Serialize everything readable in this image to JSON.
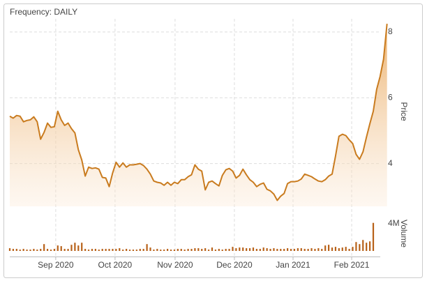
{
  "chart_data": [
    {
      "type": "area",
      "title": "Frequency: DAILY",
      "y_label": "Price",
      "color": "#c97b1e",
      "xlim": [
        0,
        106
      ],
      "ylim": [
        2.7,
        8.4
      ],
      "yticks": [
        4,
        6,
        8
      ],
      "grid": true,
      "values": [
        5.44,
        5.38,
        5.46,
        5.44,
        5.27,
        5.31,
        5.33,
        5.42,
        5.27,
        4.74,
        4.95,
        5.23,
        5.1,
        5.12,
        5.59,
        5.33,
        5.16,
        5.23,
        5.06,
        4.93,
        4.42,
        4.11,
        3.62,
        3.89,
        3.85,
        3.87,
        3.83,
        3.58,
        3.56,
        3.3,
        3.72,
        4.04,
        3.89,
        4.02,
        3.89,
        3.96,
        3.96,
        3.98,
        4.0,
        3.94,
        3.83,
        3.68,
        3.47,
        3.43,
        3.41,
        3.34,
        3.43,
        3.34,
        3.43,
        3.39,
        3.51,
        3.51,
        3.6,
        3.66,
        3.96,
        3.83,
        3.77,
        3.2,
        3.43,
        3.47,
        3.39,
        3.32,
        3.64,
        3.81,
        3.85,
        3.77,
        3.56,
        3.64,
        3.83,
        3.66,
        3.51,
        3.43,
        3.3,
        3.37,
        3.41,
        3.22,
        3.17,
        3.07,
        2.88,
        3.01,
        3.09,
        3.39,
        3.45,
        3.45,
        3.47,
        3.53,
        3.68,
        3.64,
        3.6,
        3.53,
        3.47,
        3.45,
        3.51,
        3.62,
        3.68,
        4.23,
        4.83,
        4.89,
        4.85,
        4.72,
        4.61,
        4.28,
        4.13,
        4.36,
        4.8,
        5.21,
        5.59,
        6.26,
        6.65,
        7.17,
        8.25
      ]
    },
    {
      "type": "bar",
      "y_label": "Volume",
      "color": "#b8621a",
      "xlim": [
        0,
        106
      ],
      "ylim": [
        0,
        5600000
      ],
      "yticks": [
        {
          "value": 4000000,
          "label": "4M"
        }
      ],
      "xticks": [
        {
          "value": 13.4,
          "label": "Sep 2020"
        },
        {
          "value": 30.7,
          "label": "Oct 2020"
        },
        {
          "value": 48.2,
          "label": "Nov 2020"
        },
        {
          "value": 65.5,
          "label": "Dec 2020"
        },
        {
          "value": 82.6,
          "label": "Jan 2021"
        },
        {
          "value": 99.7,
          "label": "Feb 2021"
        }
      ],
      "values": [
        400000,
        300000,
        300000,
        200000,
        300000,
        200000,
        200000,
        300000,
        200000,
        300000,
        1000000,
        300000,
        200000,
        300000,
        800000,
        700000,
        300000,
        300000,
        900000,
        1200000,
        800000,
        1200000,
        300000,
        200000,
        300000,
        300000,
        200000,
        300000,
        300000,
        300000,
        300000,
        300000,
        400000,
        200000,
        300000,
        200000,
        200000,
        200000,
        300000,
        300000,
        1000000,
        500000,
        200000,
        300000,
        200000,
        200000,
        300000,
        200000,
        200000,
        300000,
        300000,
        200000,
        300000,
        300000,
        400000,
        400000,
        300000,
        400000,
        200000,
        500000,
        200000,
        300000,
        200000,
        300000,
        300000,
        600000,
        400000,
        500000,
        500000,
        400000,
        400000,
        500000,
        300000,
        300000,
        500000,
        400000,
        300000,
        400000,
        300000,
        300000,
        300000,
        400000,
        300000,
        300000,
        400000,
        400000,
        300000,
        300000,
        400000,
        300000,
        400000,
        300000,
        800000,
        900000,
        500000,
        600000,
        400000,
        500000,
        600000,
        300000,
        600000,
        1300000,
        1000000,
        1600000,
        1200000,
        1400000,
        4100000
      ]
    }
  ]
}
